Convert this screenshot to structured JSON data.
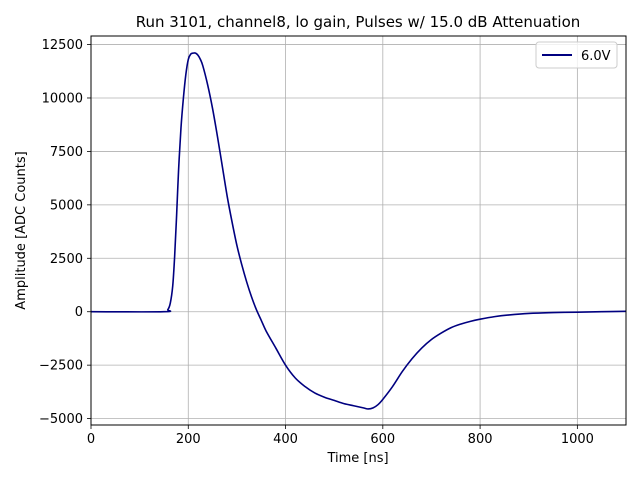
{
  "chart_data": {
    "type": "line",
    "title": "Run 3101, channel8, lo gain, Pulses w/ 15.0 dB Attenuation",
    "xlabel": "Time [ns]",
    "ylabel": "Amplitude [ADC Counts]",
    "xlim": [
      0,
      1100
    ],
    "ylim": [
      -5300,
      12900
    ],
    "xticks": [
      0,
      200,
      400,
      600,
      800,
      1000
    ],
    "xtick_labels": [
      "0",
      "200",
      "400",
      "600",
      "800",
      "1000"
    ],
    "yticks": [
      -5000,
      -2500,
      0,
      2500,
      5000,
      7500,
      10000,
      12500
    ],
    "ytick_labels": [
      "−5000",
      "−2500",
      "0",
      "2500",
      "5000",
      "7500",
      "10000",
      "12500"
    ],
    "grid": true,
    "legend_position": "top-right",
    "series": [
      {
        "name": "6.0V",
        "color": "#000080",
        "x": [
          0,
          150,
          158,
          163,
          168,
          172,
          176,
          180,
          185,
          190,
          195,
          200,
          205,
          210,
          215,
          220,
          225,
          230,
          240,
          250,
          260,
          270,
          280,
          290,
          300,
          310,
          320,
          330,
          340,
          350,
          360,
          380,
          400,
          420,
          440,
          460,
          480,
          500,
          520,
          540,
          560,
          570,
          580,
          590,
          600,
          620,
          640,
          660,
          680,
          700,
          720,
          740,
          760,
          780,
          800,
          830,
          860,
          900,
          950,
          1000,
          1050,
          1100
        ],
        "y": [
          0,
          0,
          100,
          400,
          1200,
          2600,
          4500,
          6600,
          8600,
          10000,
          11100,
          11800,
          12050,
          12100,
          12100,
          12000,
          11800,
          11500,
          10600,
          9500,
          8200,
          6800,
          5400,
          4200,
          3100,
          2200,
          1400,
          700,
          100,
          -400,
          -900,
          -1700,
          -2500,
          -3100,
          -3500,
          -3800,
          -4000,
          -4150,
          -4300,
          -4400,
          -4500,
          -4550,
          -4500,
          -4350,
          -4100,
          -3500,
          -2800,
          -2200,
          -1700,
          -1300,
          -1000,
          -750,
          -580,
          -450,
          -350,
          -230,
          -150,
          -80,
          -40,
          -20,
          0,
          20
        ]
      }
    ]
  }
}
